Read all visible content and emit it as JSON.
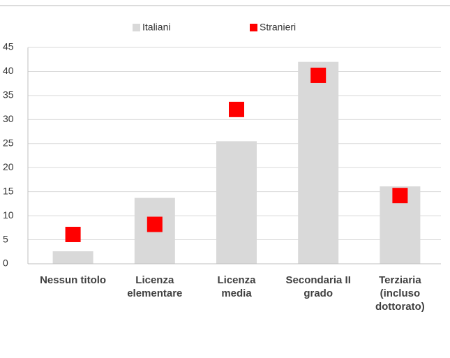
{
  "chart_data": {
    "type": "bar",
    "categories": [
      "Nessun titolo",
      "Licenza\nelementare",
      "Licenza\nmedia",
      "Secondaria II\ngrado",
      "Terziaria\n(incluso\ndottorato)"
    ],
    "series": [
      {
        "name": "Italiani",
        "color": "#d9d9d9",
        "type": "bar",
        "values": [
          2.6,
          13.7,
          25.5,
          42,
          16.1
        ]
      },
      {
        "name": "Stranieri",
        "color": "#ff0000",
        "type": "marker",
        "values": [
          6.1,
          8.2,
          32.1,
          39.2,
          14.2
        ]
      }
    ],
    "ylim": [
      0,
      45
    ],
    "yticks": [
      0,
      5,
      10,
      15,
      20,
      25,
      30,
      35,
      40,
      45
    ],
    "grid": true,
    "legend": "top"
  }
}
